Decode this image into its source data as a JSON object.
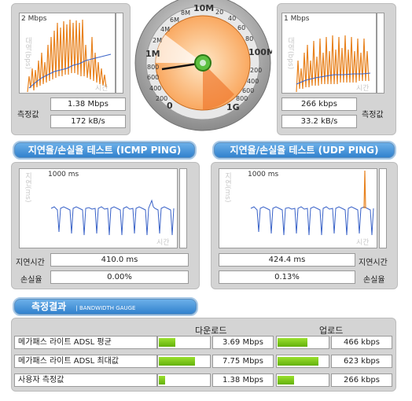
{
  "download_graph": {
    "scale": "2 Mbps",
    "y_label": "대역(bps)",
    "x_label": "시간"
  },
  "upload_graph": {
    "scale": "1 Mbps",
    "y_label": "대역(bps)",
    "x_label": "시간"
  },
  "download_values": {
    "label": "측정값",
    "mbps": "1.38 Mbps",
    "kbs": "172 kB/s"
  },
  "upload_values": {
    "label": "측정값",
    "kbps": "266 kbps",
    "kbs": "33.2 kB/s"
  },
  "gauge": {
    "labels": [
      "0",
      "200",
      "400",
      "600",
      "800",
      "1M",
      "2M",
      "4M",
      "6M",
      "8M",
      "10M",
      "20",
      "40",
      "60",
      "80",
      "100M",
      "200",
      "400",
      "600",
      "800",
      "1G"
    ],
    "needle_value_label": "1.38 Mbps"
  },
  "icmp": {
    "title": "지연율/손실율 테스트 (ICMP PING)",
    "scale": "1000 ms",
    "y_label": "지연(ms)",
    "x_label": "시간",
    "latency_label": "지연시간",
    "latency": "410.0 ms",
    "loss_label": "손실율",
    "loss": "0.00%"
  },
  "udp": {
    "title": "지연율/손실율 테스트 (UDP PING)",
    "scale": "1000 ms",
    "y_label": "지연(ms)",
    "x_label": "시간",
    "latency_label": "지연시간",
    "latency": "424.4 ms",
    "loss_label": "손실율",
    "loss": "0.13%"
  },
  "results": {
    "title": "측정결과",
    "subtitle": "| BANDWIDTH GAUGE",
    "download_header": "다운로드",
    "upload_header": "업로드",
    "rows": [
      {
        "name": "메가패스 라이트 ADSL 평균",
        "down": "3.69 Mbps",
        "down_fill": 0.33,
        "up": "466 kbps",
        "up_fill": 0.6
      },
      {
        "name": "메가패스 라이트 ADSL 최대값",
        "down": "7.75 Mbps",
        "down_fill": 0.72,
        "up": "623 kbps",
        "up_fill": 0.82
      },
      {
        "name": "사용자 측정값",
        "down": "1.38 Mbps",
        "down_fill": 0.12,
        "up": "266 kbps",
        "up_fill": 0.33
      }
    ]
  },
  "colors": {
    "panel": "#d4d4d4",
    "accent_blue": "#2e7fcc",
    "series_orange": "#e8821e",
    "series_blue": "#3a63c8",
    "bar_green": "#7ccb1a"
  }
}
